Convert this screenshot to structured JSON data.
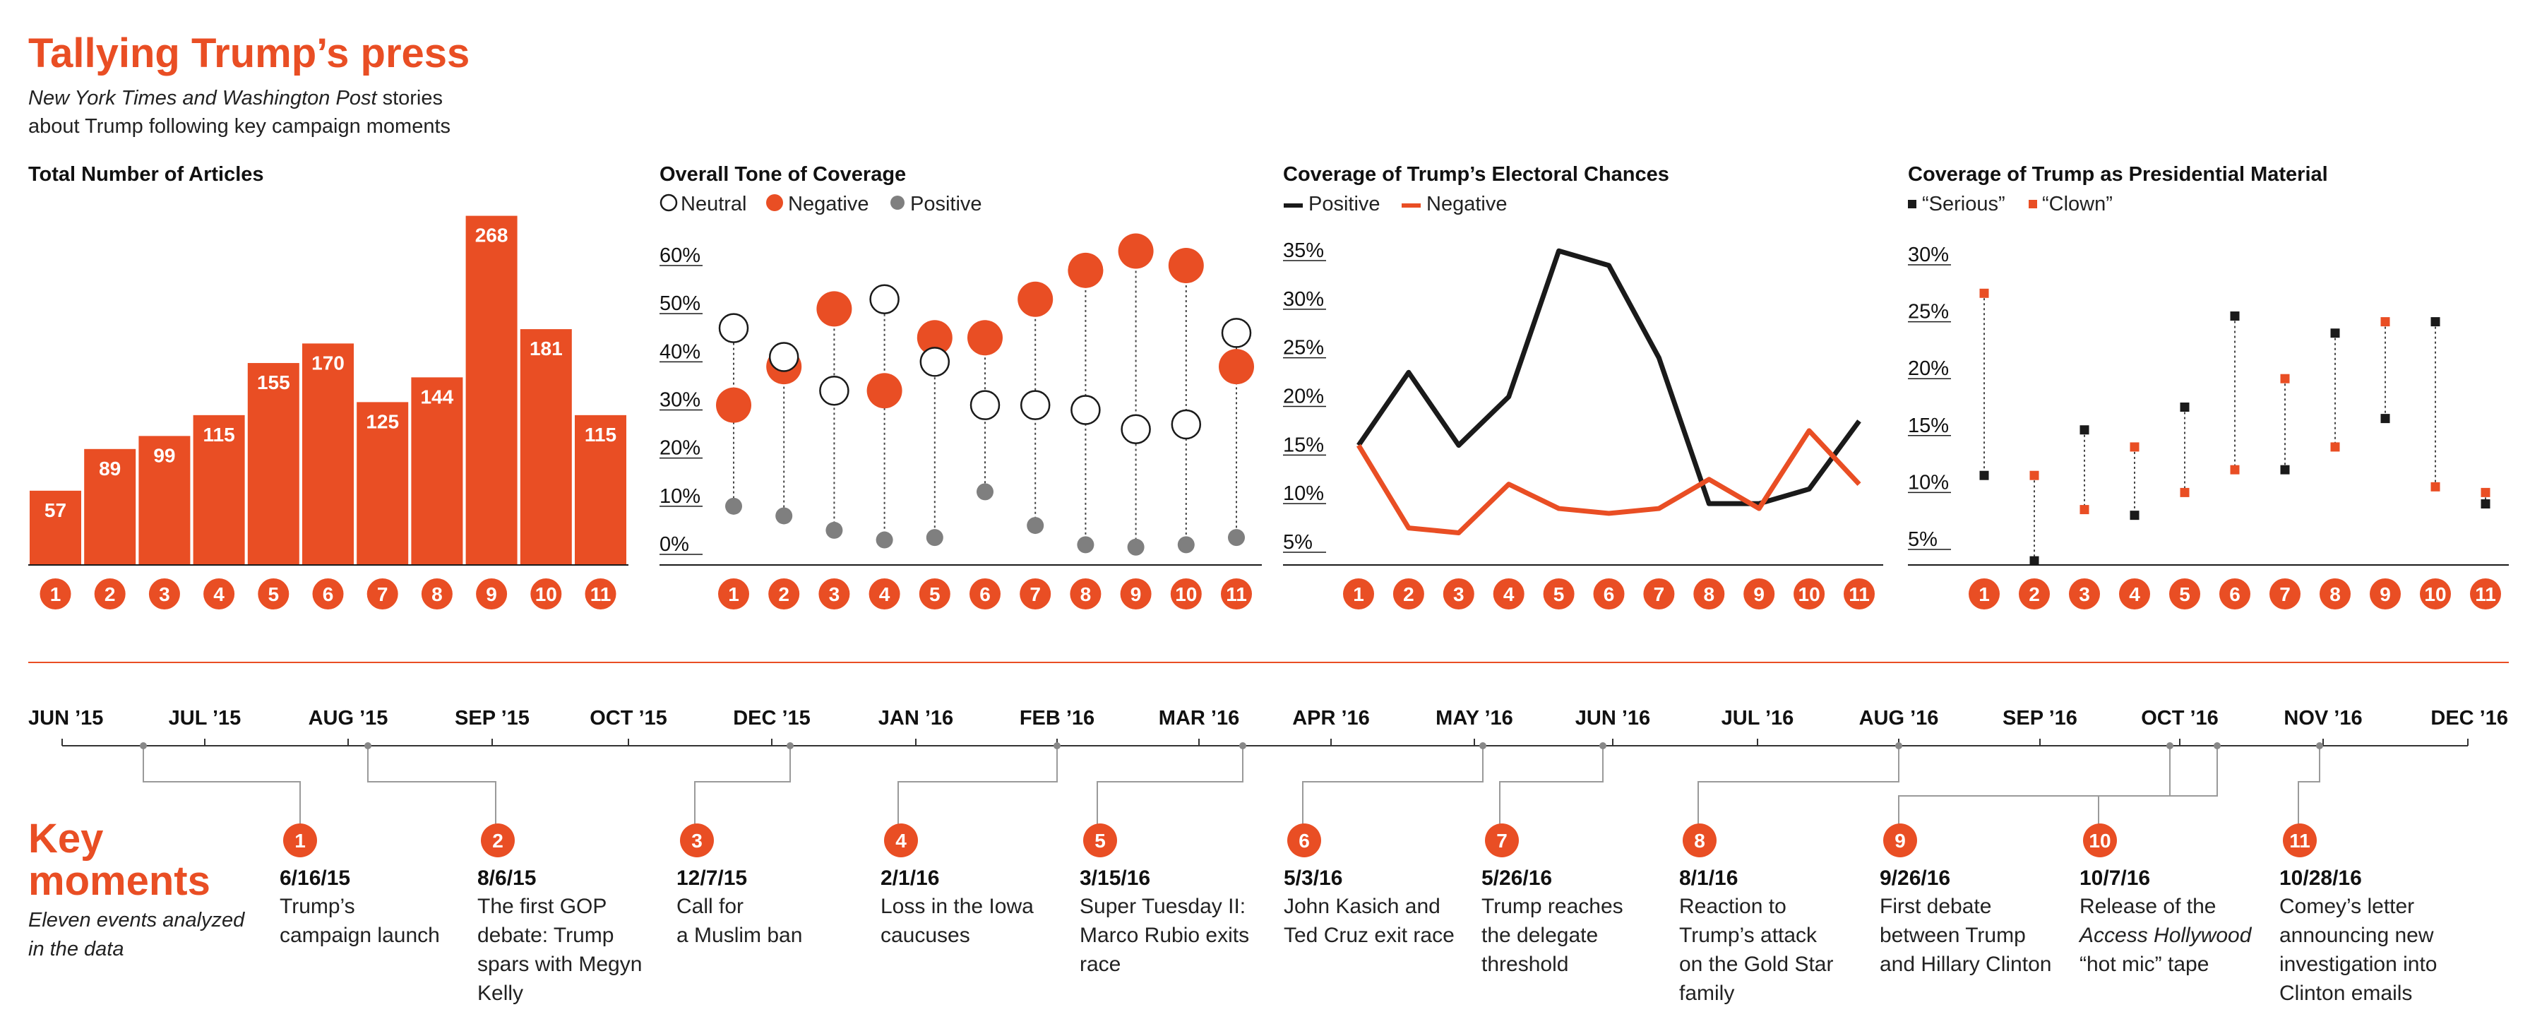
{
  "header": {
    "title": "Tallying Trump’s press",
    "subtitle_italic": "New York Times and Washington Post",
    "subtitle_rest": " stories",
    "subtitle_line2": "about Trump following key campaign moments"
  },
  "colors": {
    "accent": "#e94e24",
    "dark": "#1a1a1a",
    "positive_gray": "#7f7f7f"
  },
  "moment_numbers": [
    "1",
    "2",
    "3",
    "4",
    "5",
    "6",
    "7",
    "8",
    "9",
    "10",
    "11"
  ],
  "chart_data": [
    {
      "type": "bar",
      "title": "Total Number of Articles",
      "categories": [
        "1",
        "2",
        "3",
        "4",
        "5",
        "6",
        "7",
        "8",
        "9",
        "10",
        "11"
      ],
      "values": [
        57,
        89,
        99,
        115,
        155,
        170,
        125,
        144,
        268,
        181,
        115
      ],
      "value_labels": [
        "57",
        "89",
        "99",
        "115",
        "155",
        "170",
        "125",
        "144",
        "268",
        "181",
        "115"
      ],
      "ylim": [
        0,
        290
      ]
    },
    {
      "type": "scatter",
      "title": "Overall Tone of Coverage",
      "categories": [
        "1",
        "2",
        "3",
        "4",
        "5",
        "6",
        "7",
        "8",
        "9",
        "10",
        "11"
      ],
      "ylim": [
        0,
        60
      ],
      "y_ticks": [
        0,
        10,
        20,
        30,
        40,
        50,
        60
      ],
      "y_tick_labels": [
        "0%",
        "10%",
        "20%",
        "30%",
        "40%",
        "50%",
        "60%"
      ],
      "legend_position": "top-left",
      "series": [
        {
          "name": "Neutral",
          "values": [
            47,
            41,
            34,
            53,
            40,
            31,
            31,
            30,
            26,
            27,
            46
          ]
        },
        {
          "name": "Negative",
          "values": [
            31,
            39,
            51,
            34,
            45,
            45,
            53,
            59,
            63,
            60,
            39
          ]
        },
        {
          "name": "Positive",
          "values": [
            10,
            8,
            5,
            3,
            3.5,
            13,
            6,
            2,
            1.5,
            2,
            3.5
          ]
        }
      ]
    },
    {
      "type": "line",
      "title": "Coverage of Trump’s Electoral Chances",
      "categories": [
        "1",
        "2",
        "3",
        "4",
        "5",
        "6",
        "7",
        "8",
        "9",
        "10",
        "11"
      ],
      "ylim": [
        2.5,
        36
      ],
      "y_ticks": [
        5,
        10,
        15,
        20,
        25,
        30,
        35
      ],
      "y_tick_labels": [
        "5%",
        "10%",
        "15%",
        "20%",
        "25%",
        "30%",
        "35%"
      ],
      "legend_position": "top-left",
      "series": [
        {
          "name": "Positive",
          "values": [
            16,
            23.5,
            16,
            21,
            36,
            34.5,
            25,
            10,
            10,
            11.5,
            18.5
          ]
        },
        {
          "name": "Negative",
          "values": [
            16,
            7.5,
            7,
            12,
            9.5,
            9,
            9.5,
            12.5,
            9.5,
            17.5,
            12
          ]
        }
      ]
    },
    {
      "type": "scatter",
      "title": "Coverage of Trump as Presidential Material",
      "categories": [
        "1",
        "2",
        "3",
        "4",
        "5",
        "6",
        "7",
        "8",
        "9",
        "10",
        "11"
      ],
      "ylim": [
        2.5,
        31
      ],
      "y_ticks": [
        5,
        10,
        15,
        20,
        25,
        30
      ],
      "y_tick_labels": [
        "5%",
        "10%",
        "15%",
        "20%",
        "25%",
        "30%"
      ],
      "legend_position": "top-left",
      "series": [
        {
          "name": "“Serious”",
          "values": [
            11.5,
            4,
            15.5,
            8,
            17.5,
            25.5,
            12,
            24,
            16.5,
            25,
            9
          ]
        },
        {
          "name": "“Clown”",
          "values": [
            27.5,
            11.5,
            8.5,
            14,
            10,
            12,
            20,
            14,
            25,
            10.5,
            10
          ]
        }
      ]
    }
  ],
  "timeline": {
    "months": [
      "JUN ’15",
      "JUL ’15",
      "AUG ’15",
      "SEP ’15",
      "OCT ’15",
      "DEC ’15",
      "JAN ’16",
      "FEB ’16",
      "MAR ’16",
      "APR ’16",
      "MAY ’16",
      "JUN ’16",
      "JUL ’16",
      "AUG ’16",
      "SEP ’16",
      "OCT ’16",
      "NOV ’16",
      "DEC ’16"
    ],
    "heading_line1": "Key",
    "heading_line2": "moments",
    "note_line1": "Eleven events analyzed",
    "note_line2": "in the data",
    "events": [
      {
        "number": "1",
        "date": "6/16/15",
        "lines": [
          "Trump’s",
          "campaign launch"
        ]
      },
      {
        "number": "2",
        "date": "8/6/15",
        "lines": [
          "The first GOP",
          "debate: Trump",
          "spars with Megyn",
          "Kelly"
        ]
      },
      {
        "number": "3",
        "date": "12/7/15",
        "lines": [
          "Call for",
          "a Muslim ban"
        ]
      },
      {
        "number": "4",
        "date": "2/1/16",
        "lines": [
          "Loss in the Iowa",
          "caucuses"
        ]
      },
      {
        "number": "5",
        "date": "3/15/16",
        "lines": [
          "Super Tuesday II:",
          "Marco Rubio exits",
          "race"
        ]
      },
      {
        "number": "6",
        "date": "5/3/16",
        "lines": [
          "John Kasich and",
          "Ted Cruz exit race"
        ]
      },
      {
        "number": "7",
        "date": "5/26/16",
        "lines": [
          "Trump reaches",
          "the delegate",
          "threshold"
        ]
      },
      {
        "number": "8",
        "date": "8/1/16",
        "lines": [
          "Reaction to",
          "Trump’s attack",
          "on the Gold Star",
          "family"
        ]
      },
      {
        "number": "9",
        "date": "9/26/16",
        "lines": [
          "First debate",
          "between Trump",
          "and Hillary Clinton"
        ]
      },
      {
        "number": "10",
        "date": "10/7/16",
        "lines": [
          "Release of the",
          "Access Hollywood",
          "“hot mic” tape"
        ],
        "italic_line": 1
      },
      {
        "number": "11",
        "date": "10/28/16",
        "lines": [
          "Comey’s letter",
          "announcing new",
          "investigation into",
          "Clinton emails"
        ]
      }
    ]
  }
}
